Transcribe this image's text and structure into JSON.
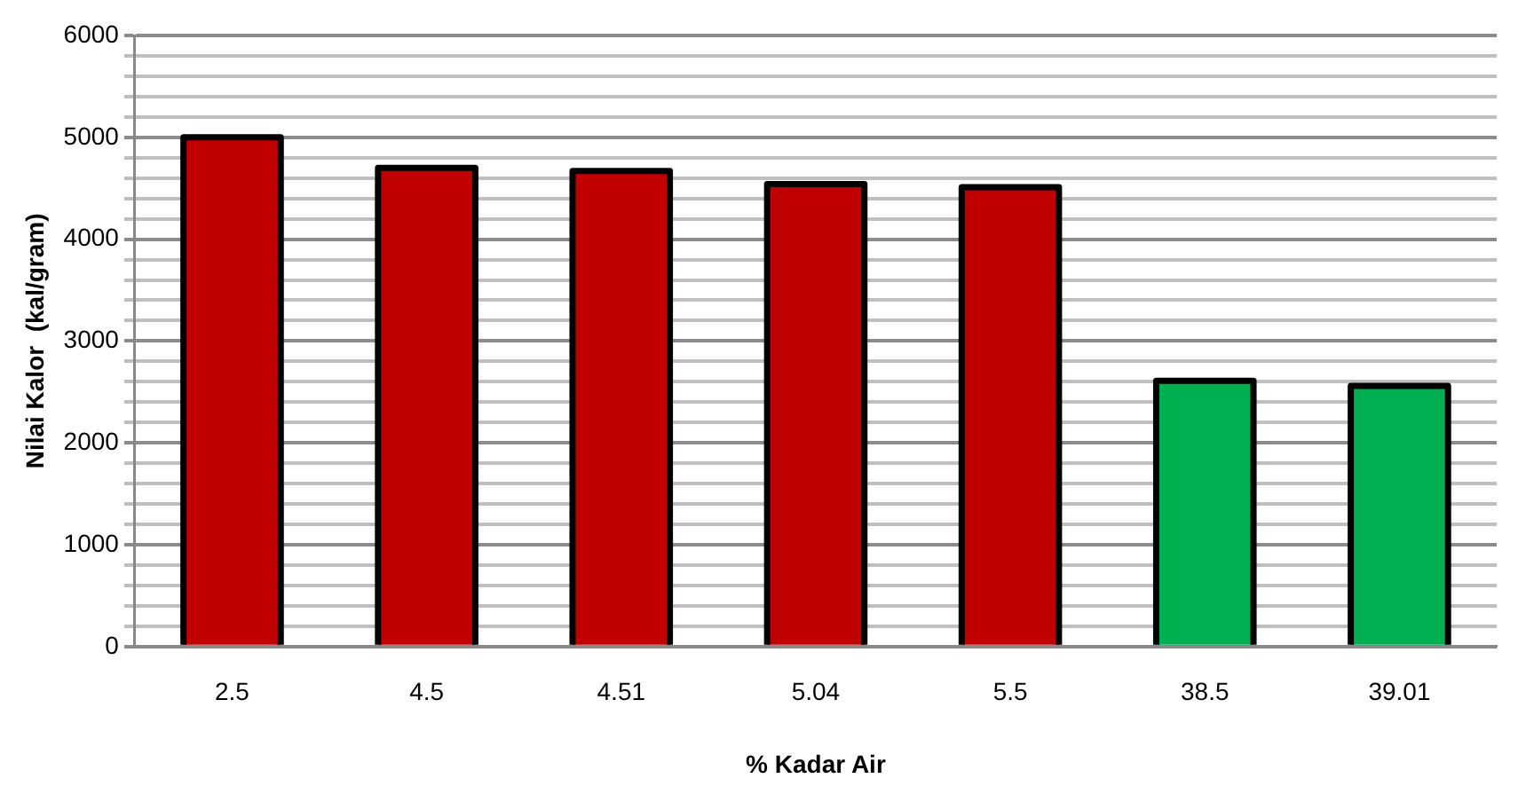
{
  "chart_data": {
    "type": "bar",
    "xlabel": "% Kadar Air",
    "ylabel": "Nilai Kalor  (kal/gram)",
    "categories": [
      "2.5",
      "4.5",
      "4.51",
      "5.04",
      "5.5",
      "38.5",
      "39.01"
    ],
    "values": [
      5000,
      4700,
      4670,
      4540,
      4510,
      2610,
      2560
    ],
    "colors": [
      "#c00000",
      "#c00000",
      "#c00000",
      "#c00000",
      "#c00000",
      "#00b050",
      "#00b050"
    ],
    "ylim": [
      0,
      6000
    ],
    "yticks": [
      0,
      {
        "value": 200,
        "label": null
      },
      {
        "value": 400,
        "label": null
      },
      {
        "value": 600,
        "label": null
      },
      {
        "value": 800,
        "label": null
      },
      1000,
      {
        "value": 1200,
        "label": null
      },
      {
        "value": 1400,
        "label": null
      },
      {
        "value": 1600,
        "label": null
      },
      {
        "value": 1800,
        "label": null
      },
      2000,
      {
        "value": 2200,
        "label": null
      },
      {
        "value": 2400,
        "label": null
      },
      {
        "value": 2600,
        "label": null
      },
      {
        "value": 2800,
        "label": null
      },
      3000,
      {
        "value": 3200,
        "label": null
      },
      {
        "value": 3400,
        "label": null
      },
      {
        "value": 3600,
        "label": null
      },
      {
        "value": 3800,
        "label": null
      },
      4000,
      {
        "value": 4200,
        "label": null
      },
      {
        "value": 4400,
        "label": null
      },
      {
        "value": 4600,
        "label": null
      },
      {
        "value": 4800,
        "label": null
      },
      5000,
      {
        "value": 5200,
        "label": null
      },
      {
        "value": 5400,
        "label": null
      },
      {
        "value": 5600,
        "label": null
      },
      {
        "value": 5800,
        "label": null
      },
      6000
    ],
    "grid": "y"
  }
}
